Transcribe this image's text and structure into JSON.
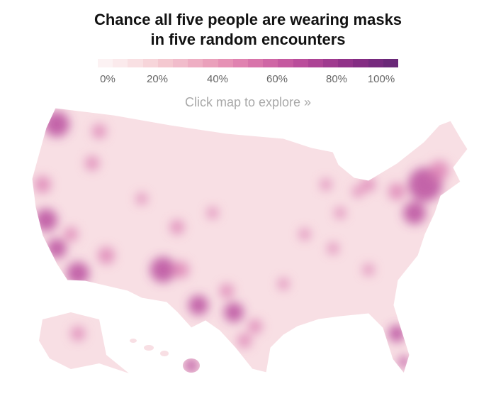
{
  "title_line1": "Chance all five people are wearing masks",
  "title_line2": "in five random encounters",
  "legend": {
    "ticks": [
      "0%",
      "20%",
      "40%",
      "60%",
      "80%",
      "100%"
    ],
    "colors": [
      "#fcf2f3",
      "#fbeaec",
      "#f9e0e3",
      "#f7d5da",
      "#f4c8d0",
      "#f1bccb",
      "#eeaec3",
      "#eaa0bb",
      "#e691b5",
      "#e082b0",
      "#d874aa",
      "#cf66a5",
      "#c559a0",
      "#ba4d9b",
      "#ad4395",
      "#9f3a8f",
      "#913289",
      "#842c83",
      "#762a7e",
      "#6a2878"
    ]
  },
  "hint": "Click map to explore »",
  "map_colors": {
    "base": "#f8dfe4",
    "border": "#ffffff",
    "dark": "#b5449a",
    "mid": "#dc80b4"
  }
}
